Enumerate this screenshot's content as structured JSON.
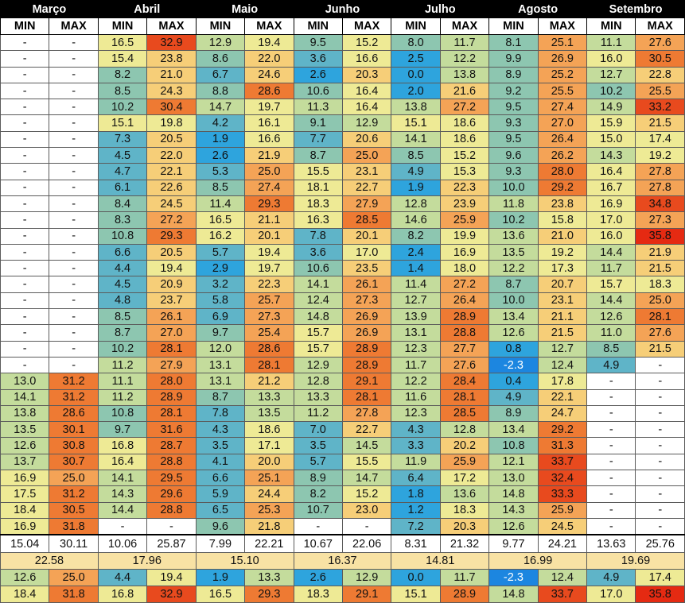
{
  "months": [
    "Março",
    "Abril",
    "Maio",
    "Junho",
    "Julho",
    "Agosto",
    "Setembro"
  ],
  "min_label": "MIN",
  "max_label": "MAX",
  "rows": [
    [
      "-",
      "-",
      "16.5",
      "32.9",
      "12.9",
      "19.4",
      "9.5",
      "15.2",
      "8.0",
      "11.7",
      "8.1",
      "25.1",
      "11.1",
      "27.6"
    ],
    [
      "-",
      "-",
      "15.4",
      "23.8",
      "8.6",
      "22.0",
      "3.6",
      "16.6",
      "2.5",
      "12.2",
      "9.9",
      "26.9",
      "16.0",
      "30.5"
    ],
    [
      "-",
      "-",
      "8.2",
      "21.0",
      "6.7",
      "24.6",
      "2.6",
      "20.3",
      "0.0",
      "13.8",
      "8.9",
      "25.2",
      "12.7",
      "22.8"
    ],
    [
      "-",
      "-",
      "8.5",
      "24.3",
      "8.8",
      "28.6",
      "10.6",
      "16.4",
      "2.0",
      "21.6",
      "9.2",
      "25.5",
      "10.2",
      "25.5"
    ],
    [
      "-",
      "-",
      "10.2",
      "30.4",
      "14.7",
      "19.7",
      "11.3",
      "16.4",
      "13.8",
      "27.2",
      "9.5",
      "27.4",
      "14.9",
      "33.2"
    ],
    [
      "-",
      "-",
      "15.1",
      "19.8",
      "4.2",
      "16.1",
      "9.1",
      "12.9",
      "15.1",
      "18.6",
      "9.3",
      "27.0",
      "15.9",
      "21.5"
    ],
    [
      "-",
      "-",
      "7.3",
      "20.5",
      "1.9",
      "16.6",
      "7.7",
      "20.6",
      "14.1",
      "18.6",
      "9.5",
      "26.4",
      "15.0",
      "17.4"
    ],
    [
      "-",
      "-",
      "4.5",
      "22.0",
      "2.6",
      "21.9",
      "8.7",
      "25.0",
      "8.5",
      "15.2",
      "9.6",
      "26.2",
      "14.3",
      "19.2"
    ],
    [
      "-",
      "-",
      "4.7",
      "22.1",
      "5.3",
      "25.0",
      "15.5",
      "23.1",
      "4.9",
      "15.3",
      "9.3",
      "28.0",
      "16.4",
      "27.8"
    ],
    [
      "-",
      "-",
      "6.1",
      "22.6",
      "8.5",
      "27.4",
      "18.1",
      "22.7",
      "1.9",
      "22.3",
      "10.0",
      "29.2",
      "16.7",
      "27.8"
    ],
    [
      "-",
      "-",
      "8.4",
      "24.5",
      "11.4",
      "29.3",
      "18.3",
      "27.9",
      "12.8",
      "23.9",
      "11.8",
      "23.8",
      "16.9",
      "34.8"
    ],
    [
      "-",
      "-",
      "8.3",
      "27.2",
      "16.5",
      "21.1",
      "16.3",
      "28.5",
      "14.6",
      "25.9",
      "10.2",
      "15.8",
      "17.0",
      "27.3"
    ],
    [
      "-",
      "-",
      "10.8",
      "29.3",
      "16.2",
      "20.1",
      "7.8",
      "20.1",
      "8.2",
      "19.9",
      "13.6",
      "21.0",
      "16.0",
      "35.8"
    ],
    [
      "-",
      "-",
      "6.6",
      "20.5",
      "5.7",
      "19.4",
      "3.6",
      "17.0",
      "2.4",
      "16.9",
      "13.5",
      "19.2",
      "14.4",
      "21.9"
    ],
    [
      "-",
      "-",
      "4.4",
      "19.4",
      "2.9",
      "19.7",
      "10.6",
      "23.5",
      "1.4",
      "18.0",
      "12.2",
      "17.3",
      "11.7",
      "21.5"
    ],
    [
      "-",
      "-",
      "4.5",
      "20.9",
      "3.2",
      "22.3",
      "14.1",
      "26.1",
      "11.4",
      "27.2",
      "8.7",
      "20.7",
      "15.7",
      "18.3"
    ],
    [
      "-",
      "-",
      "4.8",
      "23.7",
      "5.8",
      "25.7",
      "12.4",
      "27.3",
      "12.7",
      "26.4",
      "10.0",
      "23.1",
      "14.4",
      "25.0"
    ],
    [
      "-",
      "-",
      "8.5",
      "26.1",
      "6.9",
      "27.3",
      "14.8",
      "26.9",
      "13.9",
      "28.9",
      "13.4",
      "21.1",
      "12.6",
      "28.1"
    ],
    [
      "-",
      "-",
      "8.7",
      "27.0",
      "9.7",
      "25.4",
      "15.7",
      "26.9",
      "13.1",
      "28.8",
      "12.6",
      "21.5",
      "11.0",
      "27.6"
    ],
    [
      "-",
      "-",
      "10.2",
      "28.1",
      "12.0",
      "28.6",
      "15.7",
      "28.9",
      "12.3",
      "27.7",
      "0.8",
      "12.7",
      "8.5",
      "21.5"
    ],
    [
      "-",
      "-",
      "11.2",
      "27.9",
      "13.1",
      "28.1",
      "12.9",
      "28.9",
      "11.7",
      "27.6",
      "-2.3",
      "12.4",
      "4.9",
      "-"
    ],
    [
      "13.0",
      "31.2",
      "11.1",
      "28.0",
      "13.1",
      "21.2",
      "12.8",
      "29.1",
      "12.2",
      "28.4",
      "0.4",
      "17.8",
      "-",
      "-"
    ],
    [
      "14.1",
      "31.2",
      "11.2",
      "28.9",
      "8.7",
      "13.3",
      "13.3",
      "28.1",
      "11.6",
      "28.1",
      "4.9",
      "22.1",
      "-",
      "-"
    ],
    [
      "13.8",
      "28.6",
      "10.8",
      "28.1",
      "7.8",
      "13.5",
      "11.2",
      "27.8",
      "12.3",
      "28.5",
      "8.9",
      "24.7",
      "-",
      "-"
    ],
    [
      "13.5",
      "30.1",
      "9.7",
      "31.6",
      "4.3",
      "18.6",
      "7.0",
      "22.7",
      "4.3",
      "12.8",
      "13.4",
      "29.2",
      "-",
      "-"
    ],
    [
      "12.6",
      "30.8",
      "16.8",
      "28.7",
      "3.5",
      "17.1",
      "3.5",
      "14.5",
      "3.3",
      "20.2",
      "10.8",
      "31.3",
      "-",
      "-"
    ],
    [
      "13.7",
      "30.7",
      "16.4",
      "28.8",
      "4.1",
      "20.0",
      "5.7",
      "15.5",
      "11.9",
      "25.9",
      "12.1",
      "33.7",
      "-",
      "-"
    ],
    [
      "16.9",
      "25.0",
      "14.1",
      "29.5",
      "6.6",
      "25.1",
      "8.9",
      "14.7",
      "6.4",
      "17.2",
      "13.0",
      "32.4",
      "-",
      "-"
    ],
    [
      "17.5",
      "31.2",
      "14.3",
      "29.6",
      "5.9",
      "24.4",
      "8.2",
      "15.2",
      "1.8",
      "13.6",
      "14.8",
      "33.3",
      "-",
      "-"
    ],
    [
      "18.4",
      "30.5",
      "14.4",
      "28.8",
      "6.5",
      "25.3",
      "10.7",
      "23.0",
      "1.2",
      "18.3",
      "14.3",
      "25.9",
      "-",
      "-"
    ],
    [
      "16.9",
      "31.8",
      "-",
      "-",
      "9.6",
      "21.8",
      "-",
      "-",
      "7.2",
      "20.3",
      "12.6",
      "24.5",
      "-",
      "-"
    ]
  ],
  "averages": [
    "15.04",
    "30.11",
    "10.06",
    "25.87",
    "7.99",
    "22.21",
    "10.67",
    "22.06",
    "8.31",
    "21.32",
    "9.77",
    "24.21",
    "13.63",
    "25.76"
  ],
  "grand_averages": [
    "22.58",
    "17.96",
    "15.10",
    "16.37",
    "14.81",
    "16.99",
    "19.69"
  ],
  "lows": [
    "12.6",
    "25.0",
    "4.4",
    "19.4",
    "1.9",
    "13.3",
    "2.6",
    "12.9",
    "0.0",
    "11.7",
    "-2.3",
    "12.4",
    "4.9",
    "17.4"
  ],
  "highs": [
    "18.4",
    "31.8",
    "16.8",
    "32.9",
    "16.5",
    "29.3",
    "18.3",
    "29.1",
    "15.1",
    "28.9",
    "14.8",
    "33.7",
    "17.0",
    "35.8"
  ],
  "palette": {
    "header_bg": "#000000",
    "grand_bg": "#f8e2a4",
    "cold": "#2ea4dd",
    "hot": "#e52a12"
  }
}
